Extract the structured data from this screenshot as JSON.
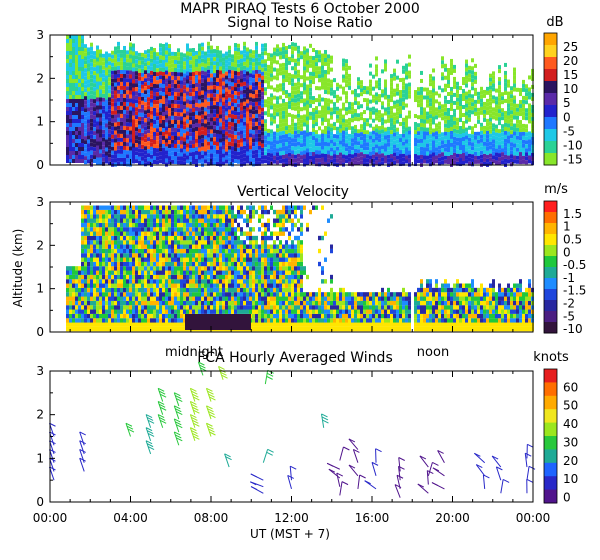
{
  "figure": {
    "title": "MAPR PIRAQ Tests  6 October 2000",
    "ylabel": "Altitude (km)",
    "xlabel": "UT  (MST + 7)",
    "midnight_label": "midnight",
    "noon_label": "noon"
  },
  "chart_data": [
    {
      "type": "heatmap",
      "title": "Signal to Noise Ratio",
      "unit": "dB",
      "ylim": [
        0,
        3
      ],
      "yticks": [
        "0",
        "1",
        "2",
        "3"
      ],
      "colorbar_labels": [
        "25",
        "20",
        "15",
        "10",
        "5",
        "0",
        "-5",
        "-10",
        "-15"
      ],
      "colorbar_colors": [
        "#ffa500",
        "#ffd21e",
        "#ff5a1e",
        "#d21e1e",
        "#2b1460",
        "#5a2aa8",
        "#2222cc",
        "#1e78ff",
        "#1ec8e6",
        "#2ad296",
        "#88e62a"
      ]
    },
    {
      "type": "heatmap",
      "title": "Vertical Velocity",
      "unit": "m/s",
      "ylim": [
        0,
        3
      ],
      "yticks": [
        "0",
        "1",
        "2",
        "3"
      ],
      "colorbar_labels": [
        "1.5",
        "1",
        "0.5",
        "0",
        "-0.5",
        "-1",
        "-1.5",
        "-2",
        "-5",
        "-10"
      ],
      "colorbar_colors": [
        "#ff1e1e",
        "#ff6e00",
        "#ffb400",
        "#ffe600",
        "#9be61e",
        "#1ec83c",
        "#1eaa96",
        "#1e8cff",
        "#1e46dc",
        "#2828a0",
        "#4b1e82",
        "#32143c"
      ]
    },
    {
      "type": "scatter",
      "title": "FCA Hourly Averaged Winds",
      "unit": "knots",
      "ylim": [
        0,
        3
      ],
      "yticks": [
        "0",
        "1",
        "2",
        "3"
      ],
      "colorbar_labels": [
        "60",
        "50",
        "40",
        "30",
        "20",
        "10",
        "0"
      ],
      "colorbar_colors": [
        "#e61e1e",
        "#ff6e00",
        "#ffaa00",
        "#f0e61e",
        "#9be61e",
        "#28c83c",
        "#1eaa96",
        "#1e64ff",
        "#2828c8",
        "#50148c"
      ],
      "xlim_hours": [
        0,
        24
      ],
      "xtick_labels": [
        "00:00",
        "04:00",
        "08:00",
        "12:00",
        "16:00",
        "20:00",
        "00:00"
      ],
      "xtick_hours": [
        0,
        4,
        8,
        12,
        16,
        20,
        24
      ],
      "columns": [
        {
          "hour": 0.2,
          "speed_kt": 10,
          "altitudes_km": [
            0.5,
            0.7,
            0.9,
            1.1,
            1.3,
            1.5
          ]
        },
        {
          "hour": 1.7,
          "speed_kt": 10,
          "altitudes_km": [
            0.7,
            0.9,
            1.1,
            1.3
          ]
        },
        {
          "hour": 4.0,
          "speed_kt": 30,
          "altitudes_km": [
            1.5
          ]
        },
        {
          "hour": 5.0,
          "speed_kt": 25,
          "altitudes_km": [
            1.1,
            1.4,
            1.7
          ]
        },
        {
          "hour": 5.6,
          "speed_kt": 30,
          "altitudes_km": [
            1.7,
            2.0,
            2.3
          ]
        },
        {
          "hour": 6.4,
          "speed_kt": 30,
          "altitudes_km": [
            1.3,
            1.6,
            1.9,
            2.2
          ]
        },
        {
          "hour": 7.2,
          "speed_kt": 35,
          "altitudes_km": [
            1.4,
            1.7,
            2.0,
            2.3
          ]
        },
        {
          "hour": 7.6,
          "speed_kt": 30,
          "altitudes_km": [
            2.9
          ]
        },
        {
          "hour": 8.0,
          "speed_kt": 35,
          "altitudes_km": [
            1.5,
            1.9,
            2.3
          ]
        },
        {
          "hour": 8.6,
          "speed_kt": 35,
          "altitudes_km": [
            2.8
          ]
        },
        {
          "hour": 8.9,
          "speed_kt": 20,
          "altitudes_km": [
            0.8
          ]
        },
        {
          "hour": 10.7,
          "speed_kt": 30,
          "altitudes_km": [
            2.7
          ]
        },
        {
          "hour": 10.6,
          "speed_kt": 20,
          "altitudes_km": [
            0.9
          ]
        },
        {
          "hour": 10.6,
          "speed_kt": 10,
          "altitudes_km": [
            0.2,
            0.35,
            0.5
          ]
        },
        {
          "hour": 12.0,
          "speed_kt": 10,
          "altitudes_km": [
            0.3,
            0.5
          ]
        },
        {
          "hour": 13.6,
          "speed_kt": 25,
          "altitudes_km": [
            1.7
          ]
        },
        {
          "hour": 14.4,
          "speed_kt": 5,
          "altitudes_km": [
            0.15,
            0.35,
            0.55,
            0.75,
            0.95
          ]
        },
        {
          "hour": 15.3,
          "speed_kt": 5,
          "altitudes_km": [
            0.3,
            0.6,
            0.9,
            1.2
          ]
        },
        {
          "hour": 16.2,
          "speed_kt": 10,
          "altitudes_km": [
            0.3,
            0.6,
            0.9
          ]
        },
        {
          "hour": 17.4,
          "speed_kt": 5,
          "altitudes_km": [
            0.1,
            0.3,
            0.5,
            0.7
          ]
        },
        {
          "hour": 18.8,
          "speed_kt": 5,
          "altitudes_km": [
            0.2,
            0.4,
            0.6,
            0.8
          ]
        },
        {
          "hour": 19.6,
          "speed_kt": 5,
          "altitudes_km": [
            0.3,
            0.6,
            0.9
          ]
        },
        {
          "hour": 21.6,
          "speed_kt": 10,
          "altitudes_km": [
            0.3,
            0.6,
            0.9
          ]
        },
        {
          "hour": 22.4,
          "speed_kt": 10,
          "altitudes_km": [
            0.2,
            0.5,
            0.8
          ]
        },
        {
          "hour": 23.7,
          "speed_kt": 10,
          "altitudes_km": [
            0.2,
            0.5,
            0.8,
            1.0
          ]
        }
      ]
    }
  ]
}
